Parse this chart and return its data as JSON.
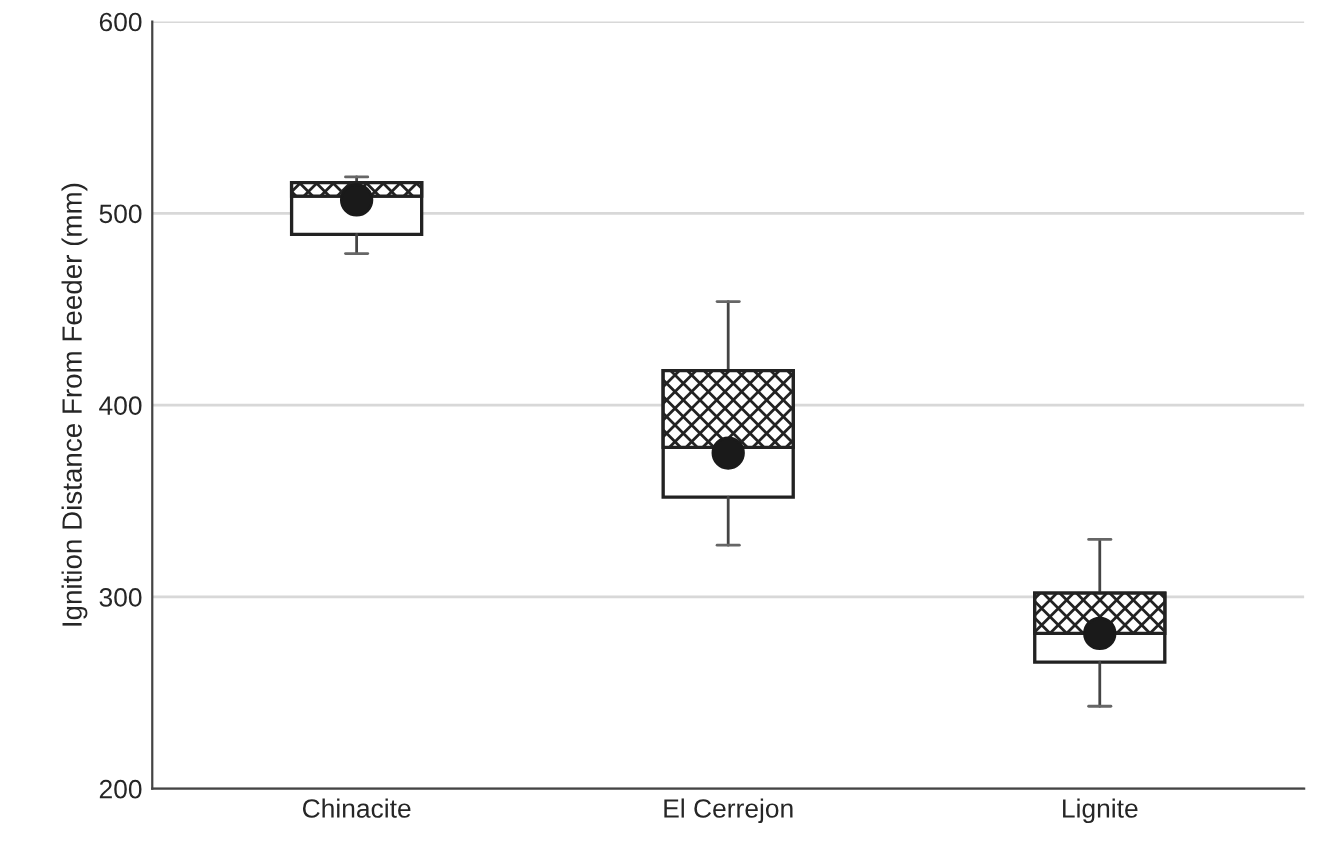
{
  "chart_data": {
    "type": "box",
    "ylabel": "Ignition Distance From Feeder (mm)",
    "categories": [
      "Chinacite",
      "El Cerrejon",
      "Lignite"
    ],
    "boxes": [
      {
        "low": 479,
        "q1": 489,
        "median": 509,
        "q3": 516,
        "high": 519,
        "mean": 507
      },
      {
        "low": 327,
        "q1": 352,
        "median": 378,
        "q3": 418,
        "high": 454,
        "mean": 375
      },
      {
        "low": 243,
        "q1": 266,
        "median": 281,
        "q3": 302,
        "high": 330,
        "mean": 281
      }
    ],
    "ylim": [
      200,
      600
    ],
    "yticks": [
      200,
      300,
      400,
      500,
      600
    ],
    "grid": "y"
  }
}
